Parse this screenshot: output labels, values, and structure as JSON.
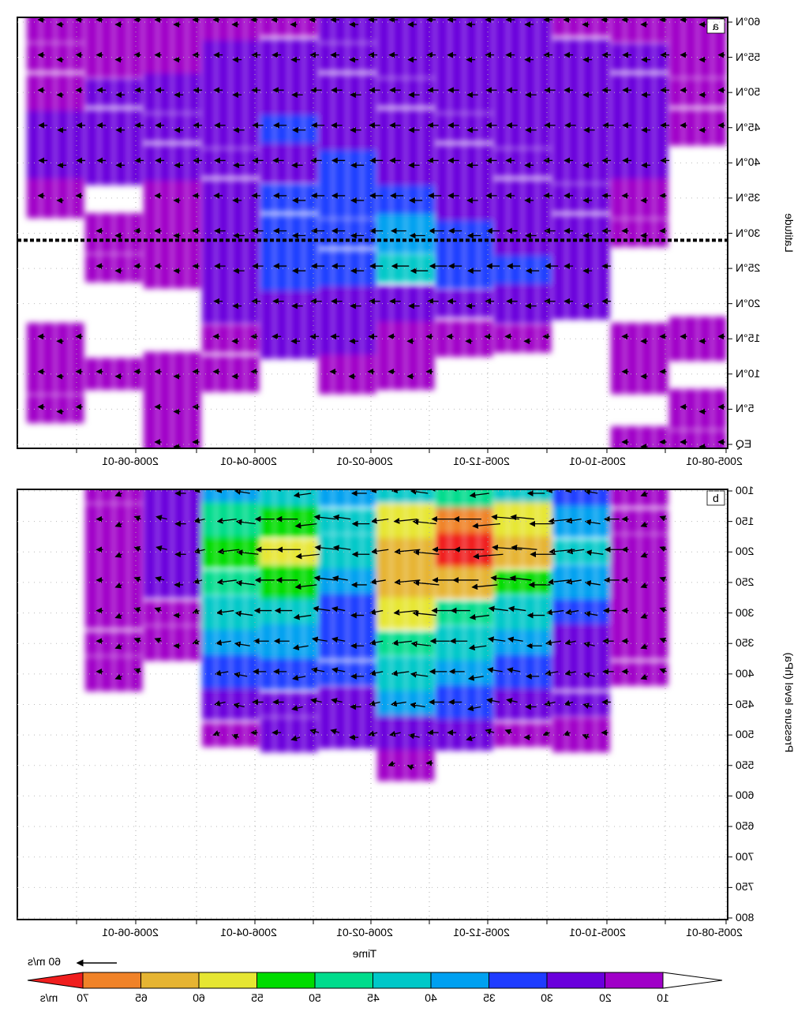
{
  "chart_data": [
    {
      "type": "heatmap",
      "panel_label": "a",
      "mirrored": true,
      "xlabel": "",
      "ylabel": "Latitude",
      "x_tick_labels": [
        "2005-08-01",
        "2005-10-01",
        "2005-12-01",
        "2006-02-01",
        "2006-04-01",
        "2006-06-01"
      ],
      "y_tick_labels": [
        "EQ",
        "5°N",
        "10°N",
        "15°N",
        "20°N",
        "25°N",
        "30°N",
        "35°N",
        "40°N",
        "45°N",
        "50°N",
        "55°N",
        "60°N"
      ],
      "ylim": [
        0,
        60
      ],
      "reference_line_lat": 29,
      "months": [
        "2005-08",
        "2005-09",
        "2005-10",
        "2005-11",
        "2005-12",
        "2006-01",
        "2006-02",
        "2006-03",
        "2006-04",
        "2006-05",
        "2006-06",
        "2006-07"
      ],
      "lat": [
        0,
        5,
        10,
        15,
        20,
        25,
        30,
        35,
        40,
        45,
        50,
        55,
        60
      ],
      "wind_speed": [
        [
          15,
          15,
          0,
          15,
          0,
          0,
          0,
          0,
          0,
          15,
          15,
          15,
          15
        ],
        [
          15,
          0,
          15,
          15,
          0,
          0,
          15,
          15,
          20,
          20,
          20,
          20,
          15
        ],
        [
          0,
          0,
          0,
          0,
          20,
          20,
          20,
          20,
          20,
          25,
          20,
          20,
          15
        ],
        [
          0,
          0,
          0,
          15,
          25,
          30,
          25,
          20,
          20,
          25,
          25,
          20,
          20
        ],
        [
          0,
          0,
          0,
          15,
          20,
          30,
          30,
          25,
          25,
          25,
          25,
          20,
          20
        ],
        [
          0,
          0,
          15,
          15,
          25,
          40,
          35,
          30,
          25,
          25,
          25,
          20,
          20
        ],
        [
          0,
          0,
          15,
          20,
          25,
          30,
          30,
          30,
          30,
          25,
          25,
          20,
          20
        ],
        [
          0,
          0,
          0,
          20,
          25,
          30,
          30,
          30,
          25,
          30,
          25,
          20,
          15
        ],
        [
          0,
          0,
          15,
          15,
          20,
          25,
          25,
          20,
          25,
          25,
          20,
          20,
          15
        ],
        [
          15,
          15,
          15,
          0,
          0,
          15,
          15,
          15,
          20,
          20,
          20,
          15,
          15
        ],
        [
          0,
          0,
          15,
          0,
          0,
          15,
          15,
          0,
          20,
          20,
          20,
          15,
          15
        ],
        [
          0,
          15,
          15,
          15,
          0,
          0,
          0,
          15,
          20,
          20,
          15,
          15,
          15
        ]
      ]
    },
    {
      "type": "heatmap",
      "panel_label": "b",
      "mirrored": true,
      "xlabel": "Time",
      "ylabel": "Pressure level (hPa)",
      "x_tick_labels": [
        "2005-08-01",
        "2005-10-01",
        "2005-12-01",
        "2006-02-01",
        "2006-04-01",
        "2006-06-01"
      ],
      "y_tick_labels": [
        "100",
        "150",
        "200",
        "250",
        "300",
        "350",
        "400",
        "450",
        "500",
        "550",
        "600",
        "650",
        "700",
        "750",
        "800"
      ],
      "ylim": [
        800,
        100
      ],
      "months": [
        "2005-08",
        "2005-09",
        "2005-10",
        "2005-11",
        "2005-12",
        "2006-01",
        "2006-02",
        "2006-03",
        "2006-04",
        "2006-05",
        "2006-06",
        "2006-07"
      ],
      "pressure": [
        100,
        150,
        200,
        250,
        300,
        350,
        400,
        450,
        500,
        550
      ],
      "wind_speed": [
        [
          0,
          0,
          0,
          0,
          0,
          0,
          0,
          0,
          0,
          0
        ],
        [
          15,
          15,
          15,
          15,
          15,
          15,
          15,
          0,
          0,
          0
        ],
        [
          30,
          35,
          40,
          35,
          30,
          25,
          25,
          20,
          15,
          0
        ],
        [
          40,
          55,
          60,
          50,
          40,
          35,
          30,
          25,
          15,
          0
        ],
        [
          45,
          65,
          70,
          60,
          45,
          40,
          35,
          30,
          20,
          0
        ],
        [
          40,
          55,
          60,
          60,
          55,
          45,
          40,
          35,
          25,
          15
        ],
        [
          35,
          40,
          40,
          35,
          30,
          30,
          30,
          25,
          20,
          0
        ],
        [
          40,
          50,
          55,
          50,
          40,
          35,
          30,
          25,
          20,
          0
        ],
        [
          35,
          45,
          50,
          45,
          40,
          35,
          30,
          25,
          15,
          0
        ],
        [
          25,
          25,
          25,
          20,
          15,
          15,
          0,
          0,
          0,
          0
        ],
        [
          15,
          15,
          15,
          15,
          15,
          15,
          15,
          0,
          0,
          0
        ],
        [
          0,
          0,
          0,
          0,
          0,
          0,
          0,
          0,
          0,
          0
        ]
      ]
    }
  ],
  "colorbar": {
    "unit": "m/s",
    "levels": [
      "10",
      "20",
      "30",
      "35",
      "40",
      "45",
      "50",
      "55",
      "60",
      "65",
      "70"
    ],
    "colors": [
      "#a000c8",
      "#6a00dc",
      "#1e3cff",
      "#00a0f0",
      "#00c8c8",
      "#00dc8c",
      "#00dc00",
      "#e6e632",
      "#e6b432",
      "#f08228",
      "#f01e1e"
    ],
    "under_color": "#ffffff"
  },
  "reference_vector": {
    "label": "60 m/s",
    "speed": 60
  }
}
